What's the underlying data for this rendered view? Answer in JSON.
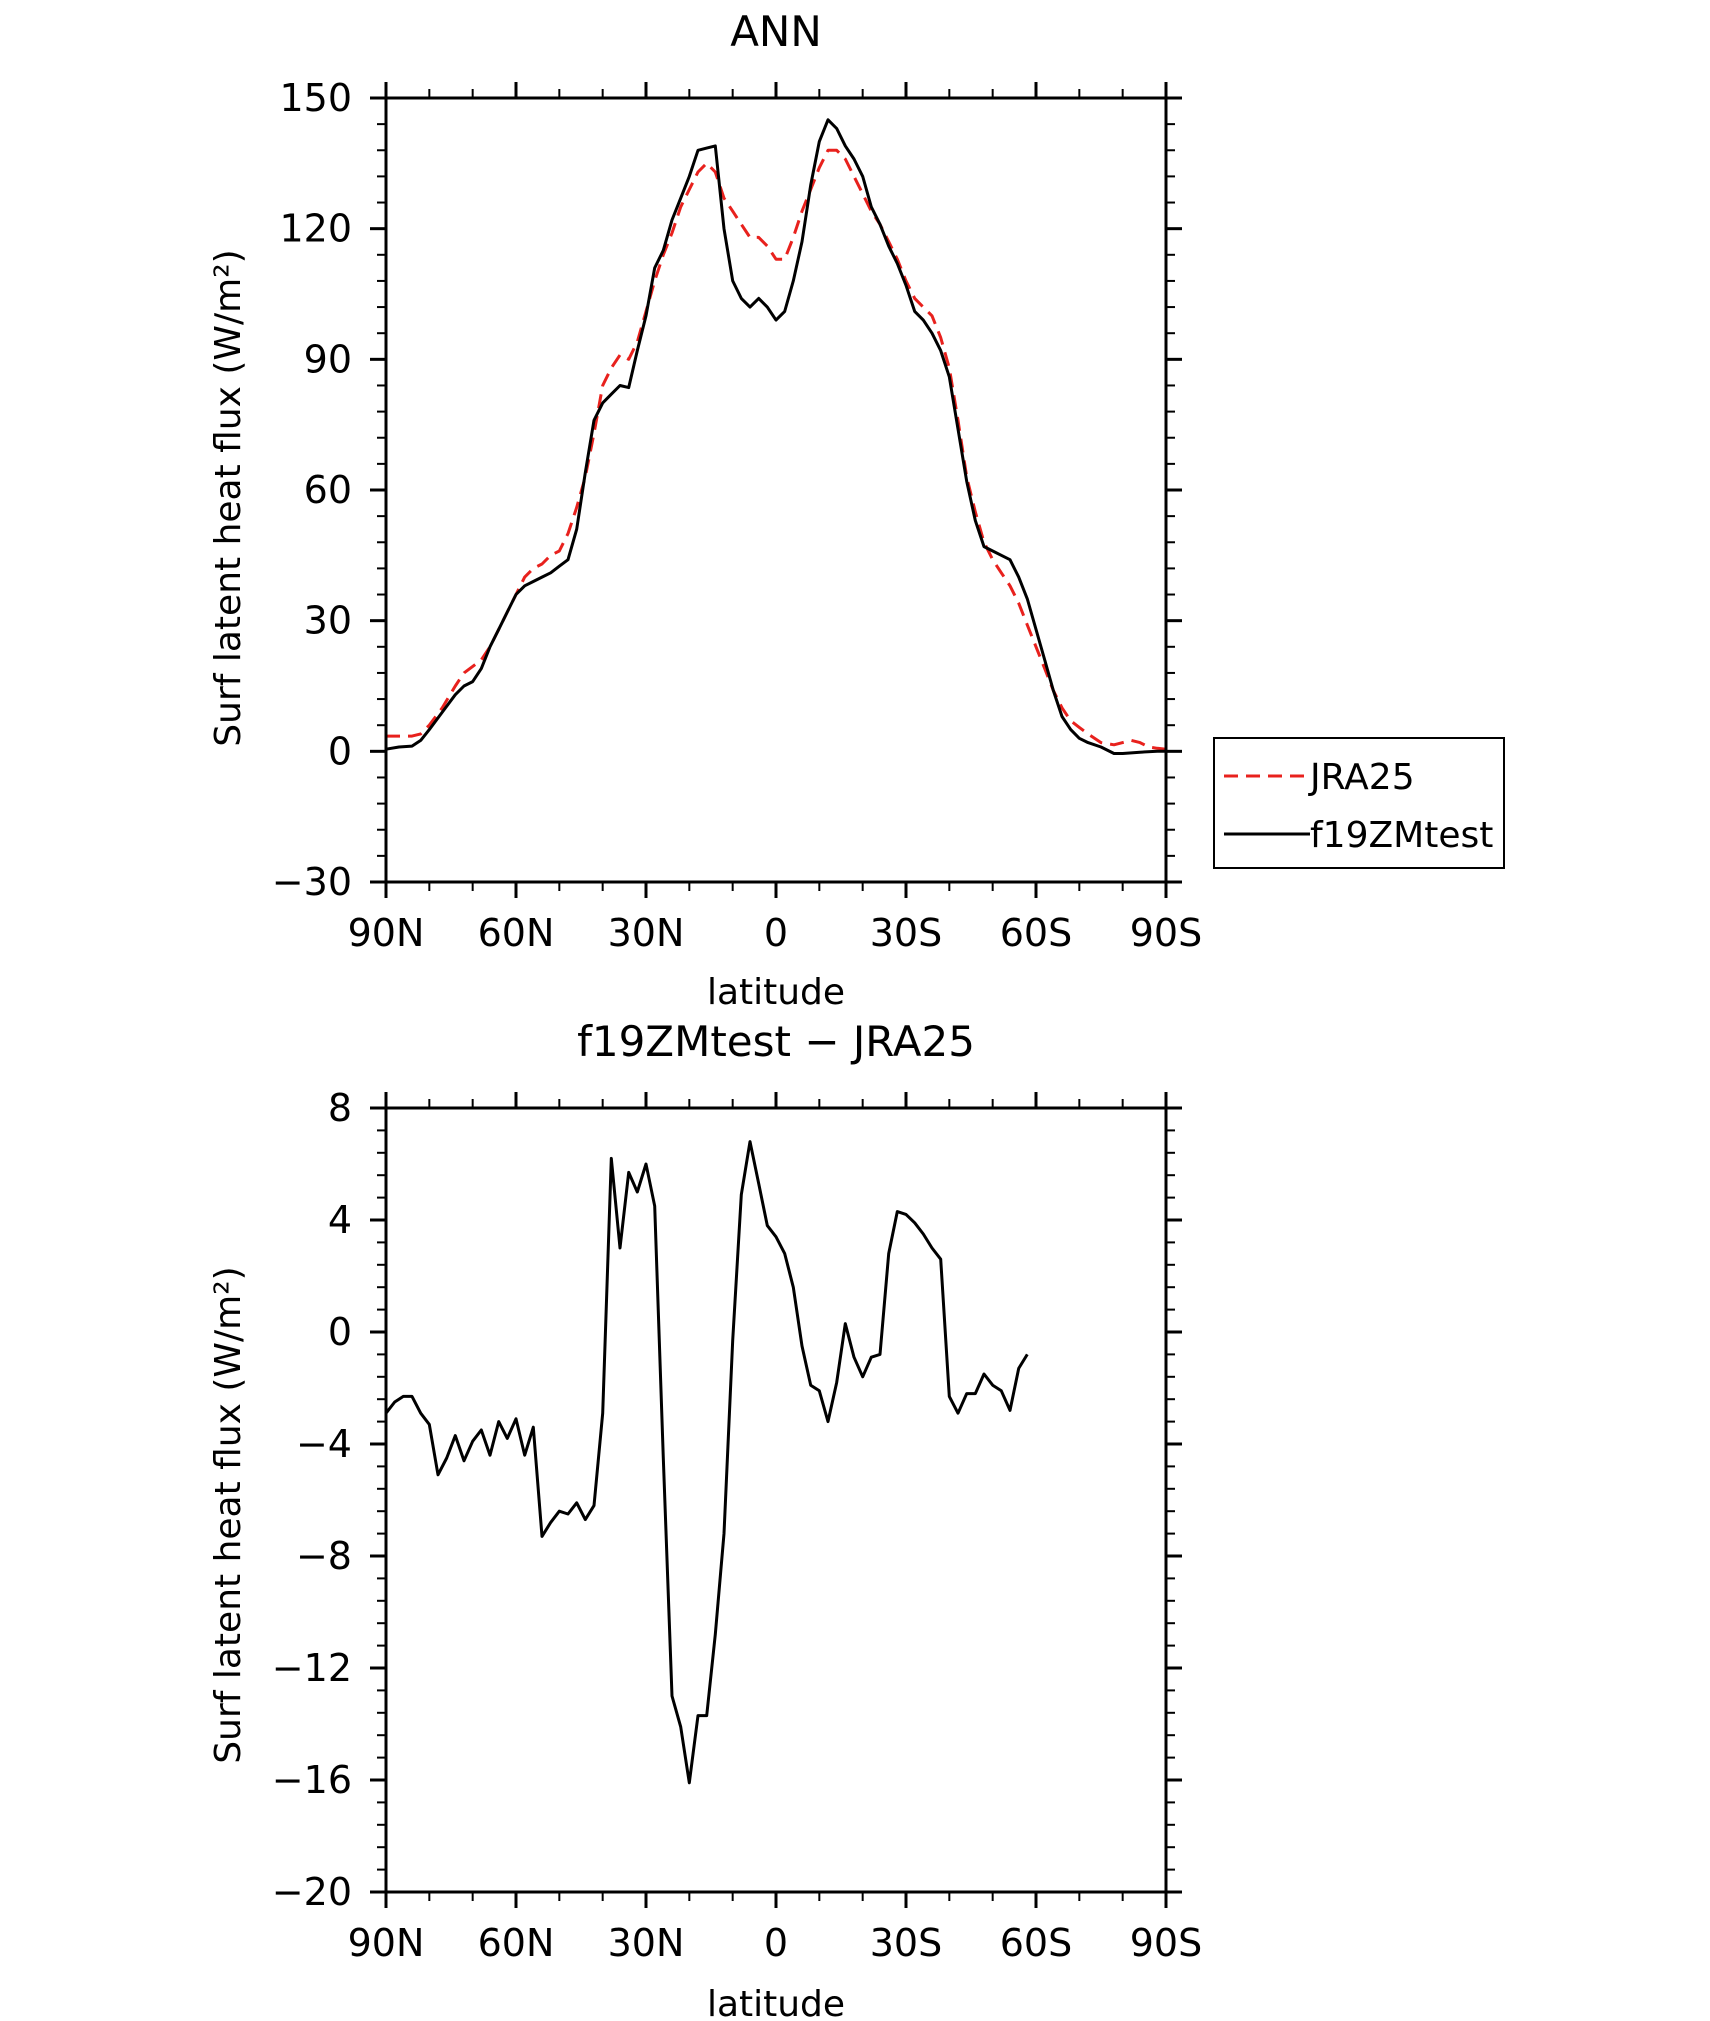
{
  "chart_data": [
    {
      "type": "line",
      "title": "ANN",
      "xlabel": "latitude",
      "ylabel": "Surf latent heat flux (W/m²)",
      "xlim": [
        90,
        -90
      ],
      "ylim": [
        -30,
        150
      ],
      "xticks": [
        90,
        60,
        30,
        0,
        -30,
        -60,
        -90
      ],
      "xtick_labels": [
        "90N",
        "60N",
        "30N",
        "0",
        "30S",
        "60S",
        "90S"
      ],
      "yticks": [
        -30,
        0,
        30,
        60,
        90,
        120,
        150
      ],
      "ytick_labels": [
        "−30",
        "0",
        "30",
        "60",
        "90",
        "120",
        "150"
      ],
      "legend_position": "right",
      "series": [
        {
          "name": "JRA25",
          "color": "#e8211d",
          "dash": true,
          "points": [
            [
              90,
              3.5
            ],
            [
              87,
              3.5
            ],
            [
              84,
              3.5
            ],
            [
              82,
              4
            ],
            [
              80,
              6
            ],
            [
              77,
              10
            ],
            [
              74,
              15
            ],
            [
              72,
              18
            ],
            [
              70,
              19.5
            ],
            [
              68,
              21
            ],
            [
              66,
              24
            ],
            [
              64,
              28
            ],
            [
              62,
              32
            ],
            [
              60,
              36
            ],
            [
              58,
              40
            ],
            [
              56,
              42
            ],
            [
              54,
              43
            ],
            [
              52,
              45
            ],
            [
              50,
              46
            ],
            [
              48,
              50
            ],
            [
              46,
              56
            ],
            [
              44,
              63
            ],
            [
              42,
              73
            ],
            [
              40,
              84
            ],
            [
              38,
              88
            ],
            [
              36,
              91
            ],
            [
              34,
              90
            ],
            [
              32,
              94
            ],
            [
              30,
              101
            ],
            [
              28,
              108
            ],
            [
              26,
              114
            ],
            [
              24,
              119
            ],
            [
              22,
              125
            ],
            [
              20,
              129
            ],
            [
              18,
              133
            ],
            [
              16,
              135
            ],
            [
              14,
              133
            ],
            [
              12,
              127
            ],
            [
              10,
              124
            ],
            [
              8,
              121
            ],
            [
              6,
              118
            ],
            [
              4,
              118
            ],
            [
              2,
              116
            ],
            [
              0,
              113
            ],
            [
              -2,
              113
            ],
            [
              -4,
              118
            ],
            [
              -6,
              124
            ],
            [
              -8,
              129
            ],
            [
              -10,
              134
            ],
            [
              -12,
              138
            ],
            [
              -14,
              138
            ],
            [
              -16,
              136
            ],
            [
              -18,
              132
            ],
            [
              -20,
              128
            ],
            [
              -22,
              124
            ],
            [
              -24,
              121
            ],
            [
              -26,
              117
            ],
            [
              -28,
              113
            ],
            [
              -30,
              108
            ],
            [
              -32,
              104
            ],
            [
              -34,
              102
            ],
            [
              -36,
              100
            ],
            [
              -38,
              95
            ],
            [
              -40,
              88
            ],
            [
              -42,
              76
            ],
            [
              -44,
              63
            ],
            [
              -46,
              55
            ],
            [
              -48,
              48
            ],
            [
              -50,
              44
            ],
            [
              -52,
              41
            ],
            [
              -54,
              38
            ],
            [
              -56,
              34
            ],
            [
              -58,
              29
            ],
            [
              -60,
              24
            ],
            [
              -62,
              19
            ],
            [
              -64,
              14
            ],
            [
              -66,
              10
            ],
            [
              -68,
              7
            ],
            [
              -70,
              5.5
            ],
            [
              -72,
              4
            ],
            [
              -75,
              2
            ],
            [
              -78,
              1.5
            ],
            [
              -80,
              2
            ],
            [
              -82,
              2.5
            ],
            [
              -84,
              2
            ],
            [
              -86,
              1
            ],
            [
              -88,
              0.7
            ],
            [
              -90,
              0.5
            ]
          ]
        },
        {
          "name": "f19ZMtest",
          "color": "#000000",
          "dash": false,
          "points": [
            [
              90,
              0.5
            ],
            [
              87,
              1
            ],
            [
              84,
              1.2
            ],
            [
              82,
              2.5
            ],
            [
              80,
              5
            ],
            [
              77,
              9
            ],
            [
              74,
              13
            ],
            [
              72,
              15
            ],
            [
              70,
              16
            ],
            [
              68,
              19
            ],
            [
              66,
              24
            ],
            [
              64,
              28
            ],
            [
              62,
              32
            ],
            [
              60,
              36
            ],
            [
              58,
              38
            ],
            [
              56,
              39
            ],
            [
              54,
              40
            ],
            [
              52,
              41
            ],
            [
              50,
              42.5
            ],
            [
              48,
              44
            ],
            [
              46,
              51
            ],
            [
              44,
              64
            ],
            [
              42,
              76
            ],
            [
              40,
              80
            ],
            [
              38,
              82
            ],
            [
              36,
              84
            ],
            [
              34,
              83.5
            ],
            [
              32,
              92
            ],
            [
              30,
              100
            ],
            [
              28,
              111
            ],
            [
              26,
              115
            ],
            [
              24,
              122
            ],
            [
              22,
              127
            ],
            [
              20,
              132
            ],
            [
              18,
              138
            ],
            [
              16,
              138.5
            ],
            [
              14,
              139
            ],
            [
              12,
              120
            ],
            [
              10,
              108
            ],
            [
              8,
              104
            ],
            [
              6,
              102
            ],
            [
              4,
              104
            ],
            [
              2,
              102
            ],
            [
              0,
              99
            ],
            [
              -2,
              101
            ],
            [
              -4,
              108
            ],
            [
              -6,
              117
            ],
            [
              -8,
              130
            ],
            [
              -10,
              140
            ],
            [
              -12,
              145
            ],
            [
              -14,
              143
            ],
            [
              -16,
              139
            ],
            [
              -18,
              136
            ],
            [
              -20,
              132
            ],
            [
              -22,
              125
            ],
            [
              -24,
              121
            ],
            [
              -26,
              116
            ],
            [
              -28,
              112
            ],
            [
              -30,
              107
            ],
            [
              -32,
              101
            ],
            [
              -34,
              99
            ],
            [
              -36,
              96
            ],
            [
              -38,
              92
            ],
            [
              -40,
              86
            ],
            [
              -42,
              74
            ],
            [
              -44,
              62
            ],
            [
              -46,
              53
            ],
            [
              -48,
              47
            ],
            [
              -50,
              46
            ],
            [
              -52,
              45
            ],
            [
              -54,
              44
            ],
            [
              -56,
              40
            ],
            [
              -58,
              35
            ],
            [
              -60,
              28
            ],
            [
              -62,
              21
            ],
            [
              -64,
              14
            ],
            [
              -66,
              8
            ],
            [
              -68,
              5
            ],
            [
              -70,
              3
            ],
            [
              -72,
              2
            ],
            [
              -75,
              1
            ],
            [
              -78,
              -0.5
            ],
            [
              -80,
              -0.5
            ],
            [
              -84,
              -0.2
            ],
            [
              -88,
              0
            ],
            [
              -90,
              0
            ]
          ]
        }
      ]
    },
    {
      "type": "line",
      "title": "f19ZMtest − JRA25",
      "xlabel": "latitude",
      "ylabel": "Surf latent heat flux (W/m²)",
      "xlim": [
        90,
        -90
      ],
      "ylim": [
        -20,
        8
      ],
      "xticks": [
        90,
        60,
        30,
        0,
        -30,
        -60,
        -90
      ],
      "xtick_labels": [
        "90N",
        "60N",
        "30N",
        "0",
        "30S",
        "60S",
        "90S"
      ],
      "yticks": [
        -20,
        -16,
        -12,
        -8,
        -4,
        0,
        4,
        8
      ],
      "ytick_labels": [
        "−20",
        "−16",
        "−12",
        "−8",
        "−4",
        "0",
        "4",
        "8"
      ],
      "series": [
        {
          "color": "#000000",
          "dash": false,
          "points": [
            [
              90,
              -2.9
            ],
            [
              88,
              -2.5
            ],
            [
              86,
              -2.3
            ],
            [
              84,
              -2.3
            ],
            [
              82,
              -2.9
            ],
            [
              80,
              -3.3
            ],
            [
              78,
              -5.1
            ],
            [
              76,
              -4.5
            ],
            [
              74,
              -3.7
            ],
            [
              72,
              -4.6
            ],
            [
              70,
              -3.9
            ],
            [
              68,
              -3.5
            ],
            [
              66,
              -4.4
            ],
            [
              64,
              -3.2
            ],
            [
              62,
              -3.8
            ],
            [
              60,
              -3.1
            ],
            [
              58,
              -4.4
            ],
            [
              56,
              -3.4
            ],
            [
              54,
              -7.3
            ],
            [
              52,
              -6.8
            ],
            [
              50,
              -6.4
            ],
            [
              48,
              -6.5
            ],
            [
              46,
              -6.1
            ],
            [
              44,
              -6.7
            ],
            [
              42,
              -6.2
            ],
            [
              40,
              -2.9
            ],
            [
              38,
              6.2
            ],
            [
              36,
              3.0
            ],
            [
              34,
              5.7
            ],
            [
              32,
              5.0
            ],
            [
              30,
              6.0
            ],
            [
              28,
              4.5
            ],
            [
              26,
              -4.5
            ],
            [
              24,
              -13
            ],
            [
              22,
              -14.1
            ],
            [
              20,
              -16.1
            ],
            [
              18,
              -13.7
            ],
            [
              16,
              -13.7
            ],
            [
              14,
              -10.8
            ],
            [
              12,
              -7.2
            ],
            [
              10,
              -0.3
            ],
            [
              8,
              4.9
            ],
            [
              6,
              6.8
            ],
            [
              4,
              5.3
            ],
            [
              2,
              3.8
            ],
            [
              0,
              3.4
            ],
            [
              -2,
              2.8
            ],
            [
              -4,
              1.6
            ],
            [
              -6,
              -0.5
            ],
            [
              -8,
              -1.9
            ],
            [
              -10,
              -2.1
            ],
            [
              -12,
              -3.2
            ],
            [
              -14,
              -1.8
            ],
            [
              -16,
              0.3
            ],
            [
              -18,
              -0.9
            ],
            [
              -20,
              -1.6
            ],
            [
              -22,
              -0.9
            ],
            [
              -24,
              -0.8
            ],
            [
              -26,
              2.8
            ],
            [
              -28,
              4.3
            ],
            [
              -30,
              4.2
            ],
            [
              -32,
              3.9
            ],
            [
              -34,
              3.5
            ],
            [
              -36,
              3.0
            ],
            [
              -38,
              2.6
            ],
            [
              -40,
              -2.3
            ],
            [
              -42,
              -2.9
            ],
            [
              -44,
              -2.2
            ],
            [
              -46,
              -2.2
            ],
            [
              -48,
              -1.5
            ],
            [
              -50,
              -1.9
            ],
            [
              -52,
              -2.1
            ],
            [
              -54,
              -2.8
            ],
            [
              -56,
              -1.3
            ],
            [
              -58,
              -0.8
            ]
          ]
        }
      ]
    }
  ]
}
